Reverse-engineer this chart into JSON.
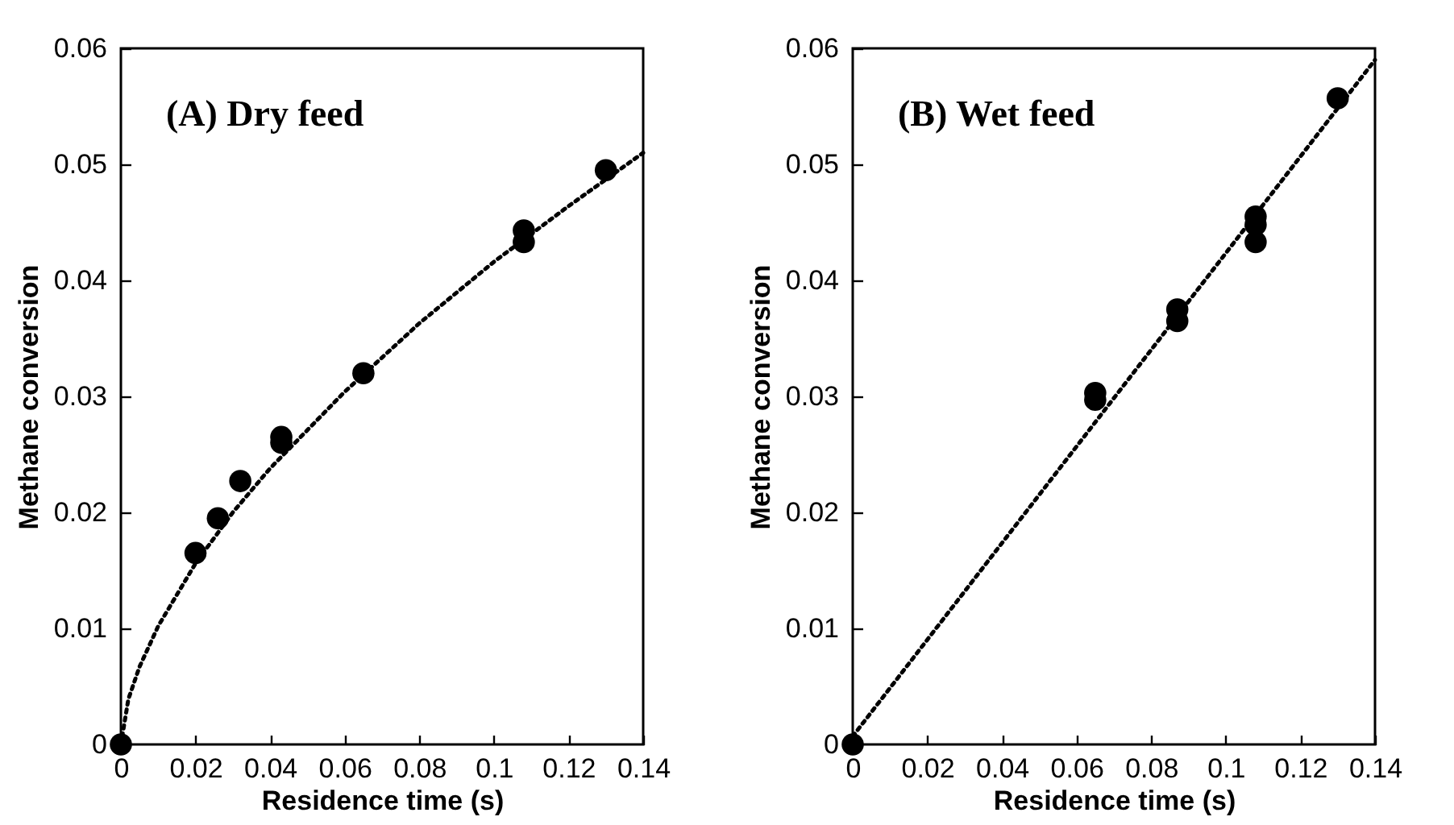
{
  "chart_data": [
    {
      "type": "scatter",
      "title": "(A) Dry feed",
      "xlabel": "Residence time (s)",
      "ylabel": "Methane conversion",
      "xlim": [
        0,
        0.14
      ],
      "xticks": [
        0,
        0.02,
        0.04,
        0.06,
        0.08,
        0.1,
        0.12,
        0.14
      ],
      "ylim": [
        0,
        0.06
      ],
      "yticks": [
        0,
        0.01,
        0.02,
        0.03,
        0.04,
        0.05,
        0.06
      ],
      "grid": false,
      "series": [
        {
          "type": "scatter",
          "color": "#000000",
          "marker": "circle",
          "x": [
            0,
            0.02,
            0.026,
            0.032,
            0.043,
            0.043,
            0.065,
            0.108,
            0.108,
            0.13
          ],
          "values": [
            0,
            0.0165,
            0.0195,
            0.0227,
            0.0265,
            0.026,
            0.032,
            0.0443,
            0.0433,
            0.0495
          ]
        },
        {
          "type": "line",
          "color": "#000000",
          "line_style": "dotted",
          "x": [
            0,
            0.002,
            0.005,
            0.01,
            0.02,
            0.03,
            0.04,
            0.06,
            0.08,
            0.1,
            0.12,
            0.14
          ],
          "values": [
            0,
            0.0039,
            0.0067,
            0.0102,
            0.0156,
            0.02,
            0.0238,
            0.0304,
            0.0363,
            0.0416,
            0.0464,
            0.051
          ]
        }
      ]
    },
    {
      "type": "scatter",
      "title": "(B) Wet feed",
      "xlabel": "Residence time (s)",
      "ylabel": "Methane conversion",
      "xlim": [
        0,
        0.14
      ],
      "xticks": [
        0,
        0.02,
        0.04,
        0.06,
        0.08,
        0.1,
        0.12,
        0.14
      ],
      "ylim": [
        0,
        0.06
      ],
      "yticks": [
        0,
        0.01,
        0.02,
        0.03,
        0.04,
        0.05,
        0.06
      ],
      "grid": false,
      "series": [
        {
          "type": "scatter",
          "color": "#000000",
          "marker": "circle",
          "x": [
            0,
            0.065,
            0.065,
            0.087,
            0.087,
            0.108,
            0.108,
            0.108,
            0.13
          ],
          "values": [
            0,
            0.0303,
            0.0297,
            0.0375,
            0.0365,
            0.0455,
            0.0448,
            0.0433,
            0.0557
          ]
        },
        {
          "type": "line",
          "color": "#000000",
          "line_style": "dotted",
          "x": [
            0,
            0.14
          ],
          "values": [
            0.0007,
            0.059
          ]
        }
      ]
    }
  ]
}
